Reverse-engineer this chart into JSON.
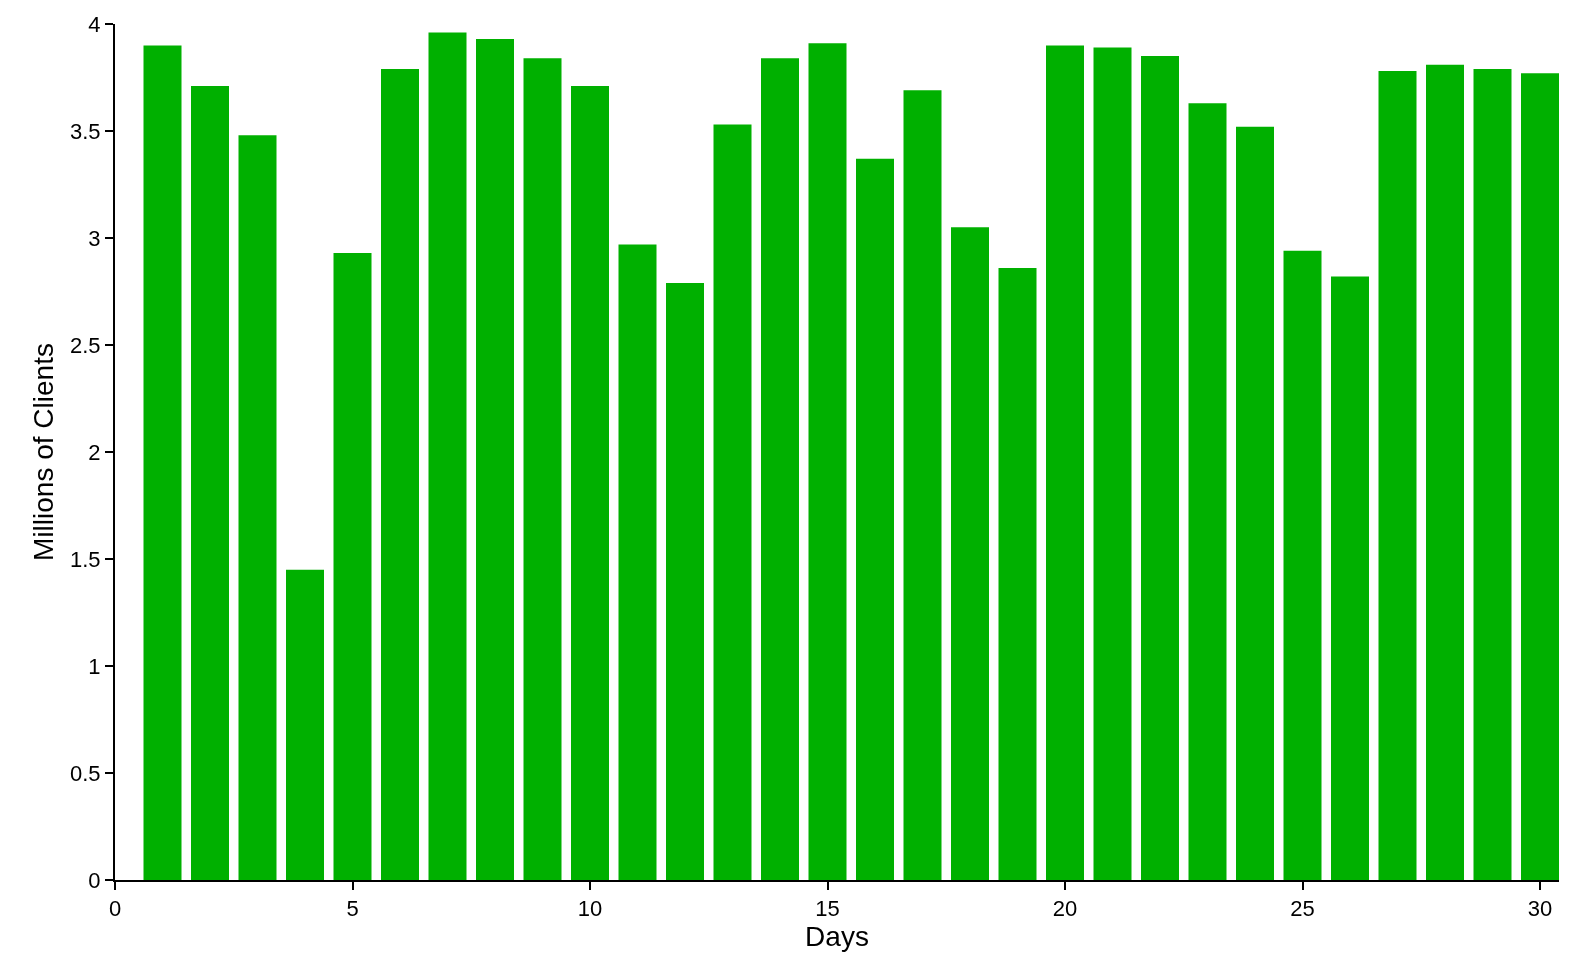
{
  "chart_data": {
    "type": "bar",
    "xlabel": "Days",
    "ylabel": "Millions of Clients",
    "color": "#00b000",
    "x": [
      1,
      2,
      3,
      4,
      5,
      6,
      7,
      8,
      9,
      10,
      11,
      12,
      13,
      14,
      15,
      16,
      17,
      18,
      19,
      20,
      21,
      22,
      23,
      24,
      25,
      26,
      27,
      28,
      29,
      30
    ],
    "values": [
      3.9,
      3.71,
      3.48,
      1.45,
      2.93,
      3.79,
      3.96,
      3.93,
      3.84,
      3.71,
      2.97,
      2.79,
      3.53,
      3.84,
      3.91,
      3.37,
      3.69,
      3.05,
      2.86,
      3.9,
      3.89,
      3.85,
      3.63,
      3.52,
      2.94,
      2.82,
      3.78,
      3.81,
      3.79,
      3.77
    ],
    "xlim": [
      0,
      30.4
    ],
    "xticks": [
      0,
      5,
      10,
      15,
      20,
      25,
      30
    ],
    "ylim": [
      0,
      4
    ],
    "yticks": [
      0,
      0.5,
      1,
      1.5,
      2,
      2.5,
      3,
      3.5,
      4
    ]
  }
}
